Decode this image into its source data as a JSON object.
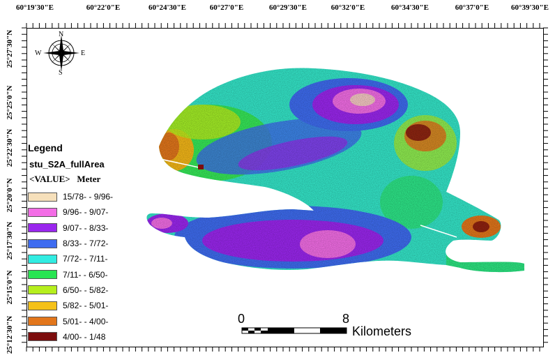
{
  "map": {
    "lon_ticks": [
      "60°19'30\"E",
      "60°22'0\"E",
      "60°24'30\"E",
      "60°27'0\"E",
      "60°29'30\"E",
      "60°32'0\"E",
      "60°34'30\"E",
      "60°37'0\"E",
      "60°39'30\"E"
    ],
    "lat_ticks": [
      "25°27'30\"N",
      "25°25'0\"N",
      "25°22'30\"N",
      "25°20'0\"N",
      "25°17'30\"N",
      "25°15'0\"N",
      "25°12'30\"N"
    ]
  },
  "legend": {
    "title": "Legend",
    "layer": "stu_S2A_fullArea",
    "value_label": "<VALUE>   Meter",
    "classes": [
      {
        "label": "15/78- - 9/96-",
        "color": "#f6e0bb"
      },
      {
        "label": "9/96- - 9/07-",
        "color": "#f36de6"
      },
      {
        "label": "9/07- - 8/33-",
        "color": "#9a26ee"
      },
      {
        "label": "8/33- - 7/72-",
        "color": "#3e6cf0"
      },
      {
        "label": "7/72- - 7/11-",
        "color": "#31ece2"
      },
      {
        "label": "7/11- - 6/50-",
        "color": "#28e552"
      },
      {
        "label": "6/50- - 5/82-",
        "color": "#b6ef1d"
      },
      {
        "label": "5/82- - 5/01-",
        "color": "#f5c118"
      },
      {
        "label": "5/01- - 4/00-",
        "color": "#e2761b"
      },
      {
        "label": "4/00- - 1/48",
        "color": "#7c0d0d"
      }
    ]
  },
  "north_arrow": {
    "n": "N",
    "s": "S",
    "e": "E",
    "w": "W"
  },
  "scale_bar": {
    "start": "0",
    "end": "8",
    "unit": "Kilometers"
  }
}
